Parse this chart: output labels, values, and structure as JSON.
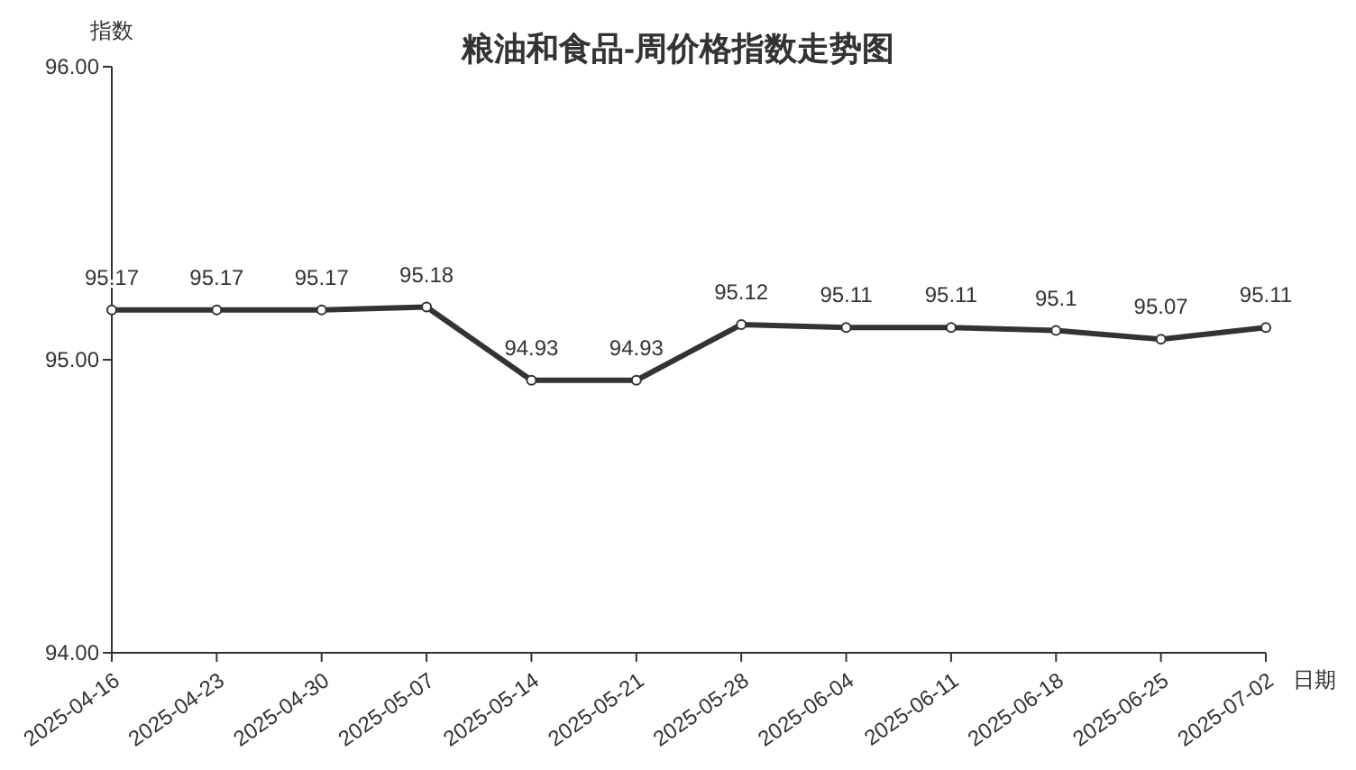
{
  "chart_data": {
    "type": "line",
    "title": "粮油和食品-周价格指数走势图",
    "xlabel": "日期",
    "ylabel": "指数",
    "categories": [
      "2025-04-16",
      "2025-04-23",
      "2025-04-30",
      "2025-05-07",
      "2025-05-14",
      "2025-05-21",
      "2025-05-28",
      "2025-06-04",
      "2025-06-11",
      "2025-06-18",
      "2025-06-25",
      "2025-07-02"
    ],
    "series": [
      {
        "color": "#333333",
        "values": [
          95.17,
          95.17,
          95.17,
          95.18,
          94.93,
          94.93,
          95.12,
          95.11,
          95.11,
          95.1,
          95.07,
          95.11
        ]
      }
    ],
    "ylim": [
      94,
      96
    ],
    "yticks": [
      {
        "value": 94,
        "label": "94.00"
      },
      {
        "value": 95,
        "label": "95.00"
      },
      {
        "value": 96,
        "label": "96.00"
      }
    ],
    "data_labels": true,
    "marker": "circle",
    "line_style": "solid",
    "grid": false
  }
}
